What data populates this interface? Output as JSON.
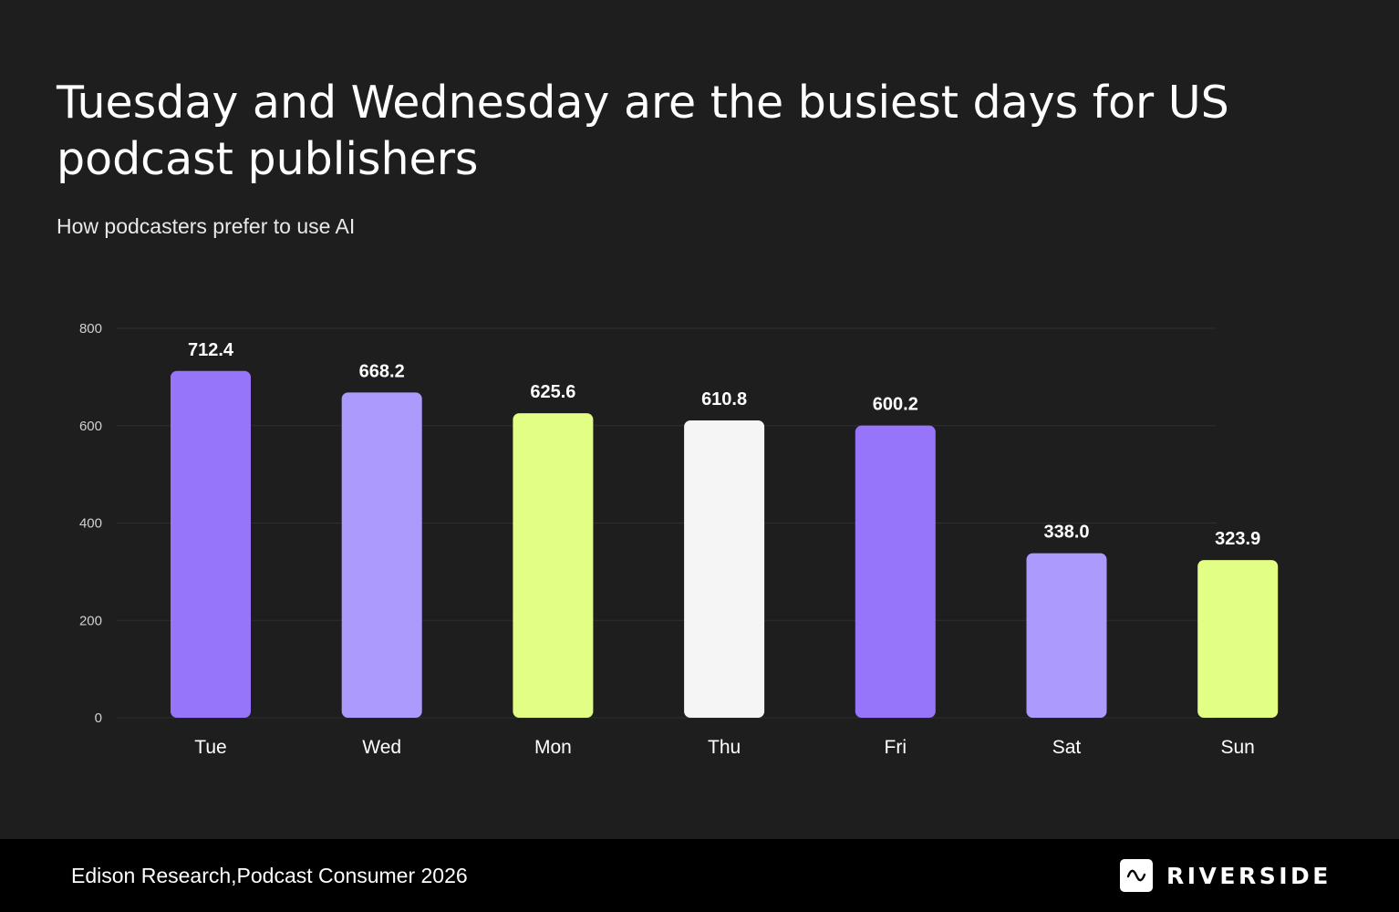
{
  "header": {
    "title": "Tuesday and Wednesday are the busiest days for US podcast publishers",
    "subtitle": "How podcasters prefer to use AI"
  },
  "chart_data": {
    "type": "bar",
    "categories": [
      "Tue",
      "Wed",
      "Mon",
      "Thu",
      "Fri",
      "Sat",
      "Sun"
    ],
    "values": [
      712.4,
      668.2,
      625.6,
      610.8,
      600.2,
      338.0,
      323.9
    ],
    "value_labels": [
      "712.4",
      "668.2",
      "625.6",
      "610.8",
      "600.2",
      "338.0",
      "323.9"
    ],
    "bar_colors": [
      "#9775fa",
      "#ac9bfd",
      "#e2fe85",
      "#f5f5f5",
      "#9775fa",
      "#ac9bfd",
      "#e2fe85"
    ],
    "title": "Tuesday and Wednesday are the busiest days for US podcast publishers",
    "subtitle": "How podcasters prefer to use AI",
    "xlabel": "",
    "ylabel": "",
    "ylim": [
      0,
      800
    ],
    "yticks": [
      "0",
      "200",
      "400",
      "600",
      "800"
    ],
    "grid": true,
    "legend": "none"
  },
  "footer": {
    "source": "Edison Research,Podcast Consumer 2026",
    "brand": "RIVERSIDE",
    "brand_icon": "waveform-icon"
  },
  "colors": {
    "background": "#1e1e1e",
    "footer_background": "#000000",
    "gridline": "#2f2f2f",
    "text": "#ffffff",
    "axis_text": "#d0d0d0"
  }
}
